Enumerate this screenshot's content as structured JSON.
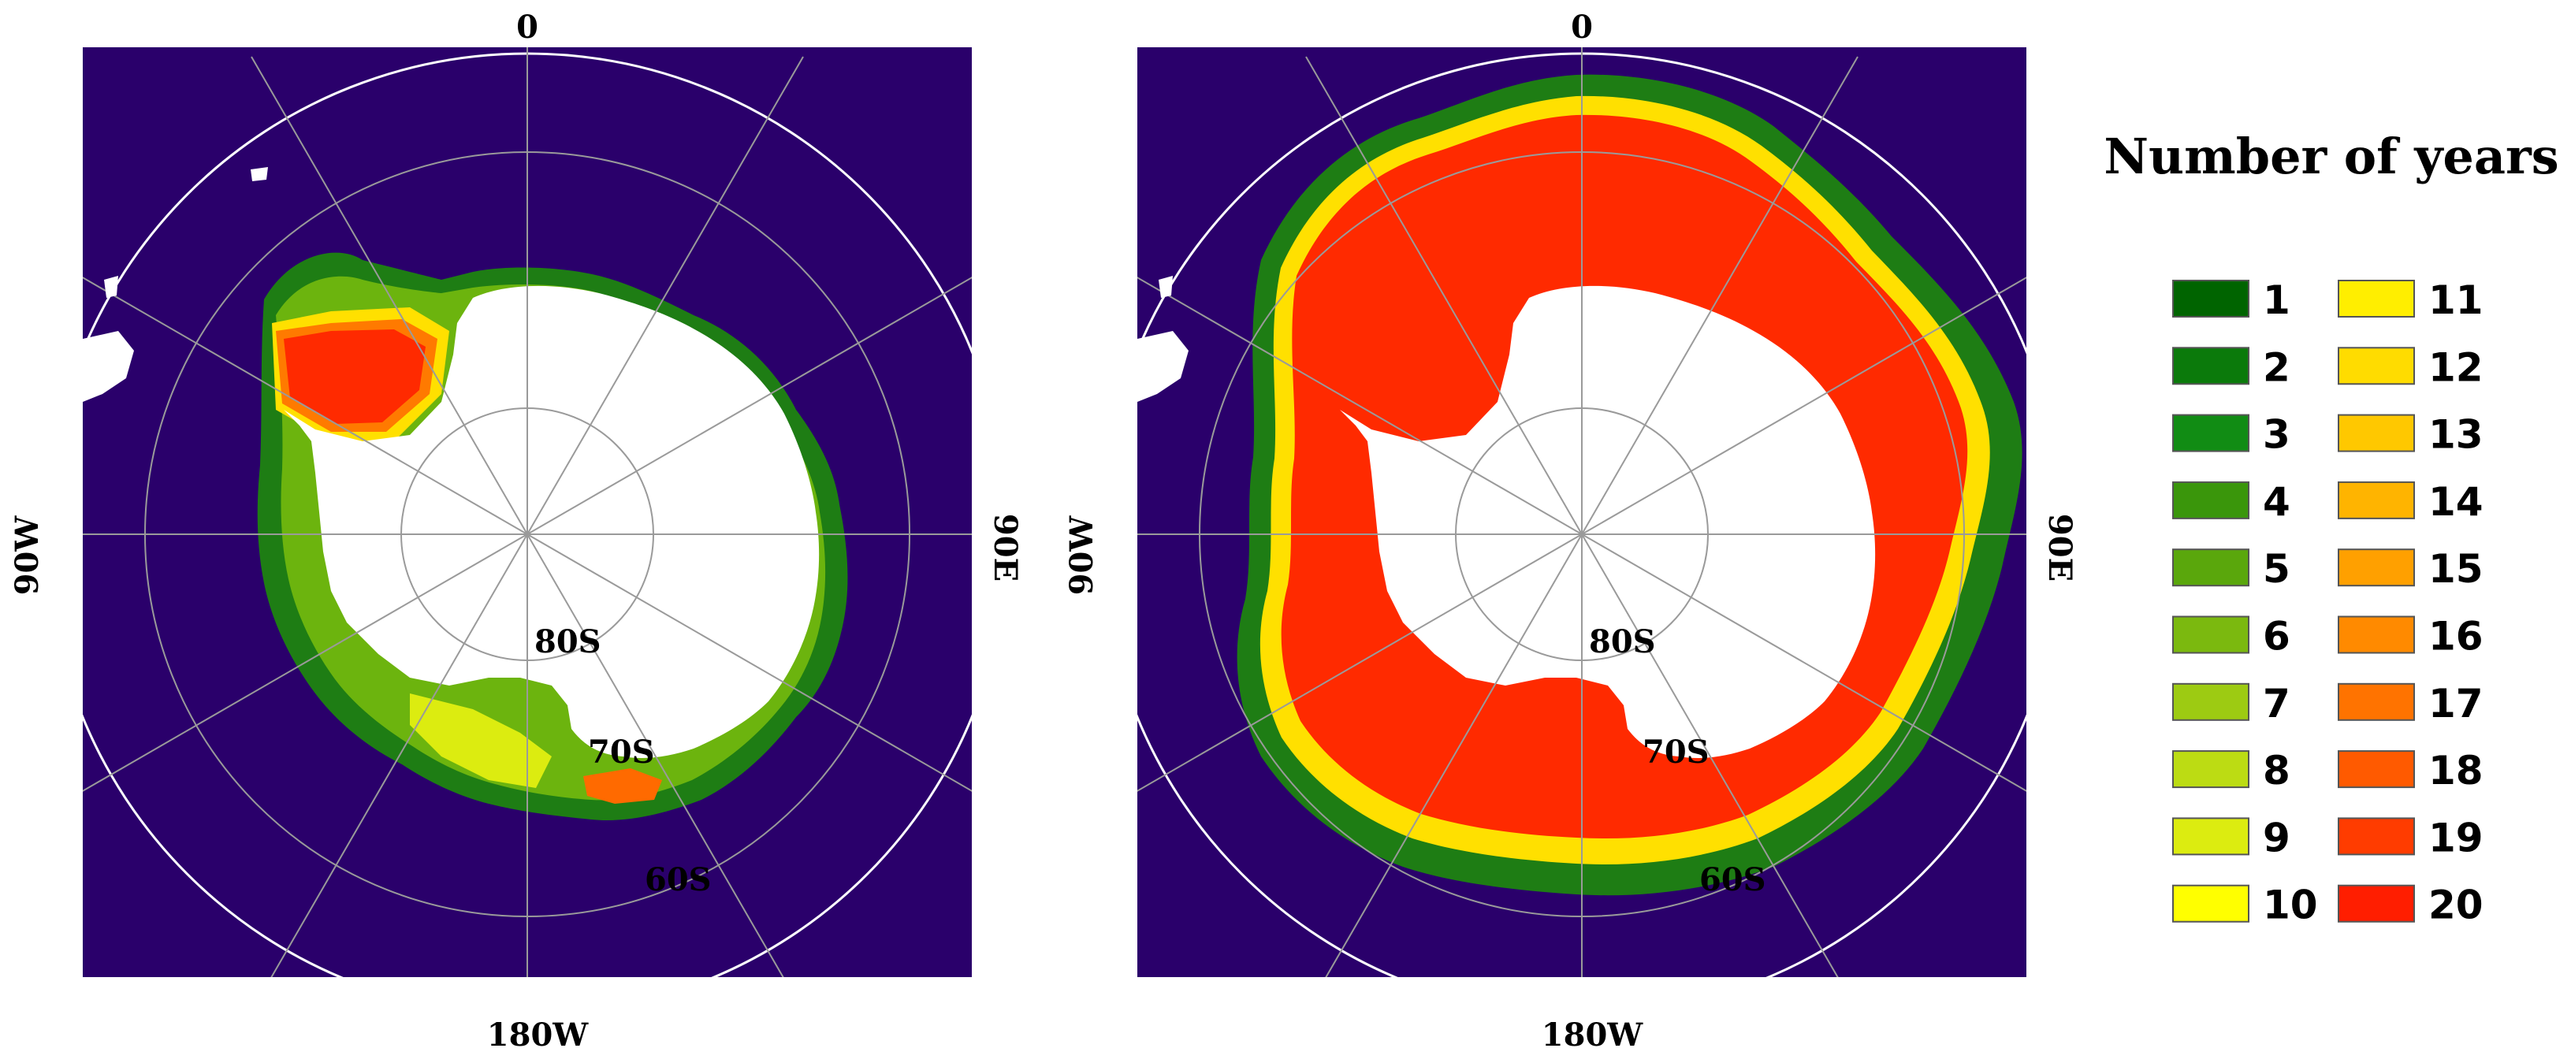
{
  "figure": {
    "panels": [
      {
        "id": "left",
        "labels": {
          "top": "0",
          "bottom": "180W",
          "left": "90W",
          "right": "90E",
          "lat80": "80S",
          "lat70": "70S",
          "lat60": "60S"
        },
        "colors": {
          "ocean": "#2a006b",
          "continent": "#ffffff",
          "graticule": "#9a9a9a",
          "boundary": "#ffffff"
        }
      },
      {
        "id": "right",
        "labels": {
          "top": "0",
          "bottom": "180W",
          "left": "90W",
          "right": "90E",
          "lat80": "80S",
          "lat70": "70S",
          "lat60": "60S"
        },
        "colors": {
          "ocean": "#2a006b",
          "continent": "#ffffff",
          "graticule": "#9a9a9a",
          "boundary": "#ffffff"
        }
      }
    ]
  },
  "legend": {
    "title": "Number of years",
    "items": [
      {
        "label": "1",
        "color": "#006400"
      },
      {
        "label": "2",
        "color": "#0b7a0b"
      },
      {
        "label": "3",
        "color": "#118c14"
      },
      {
        "label": "4",
        "color": "#3a960b"
      },
      {
        "label": "5",
        "color": "#5aa70c"
      },
      {
        "label": "6",
        "color": "#7bb90f"
      },
      {
        "label": "7",
        "color": "#9dcb12"
      },
      {
        "label": "8",
        "color": "#bcdc13"
      },
      {
        "label": "9",
        "color": "#dcec10"
      },
      {
        "label": "10",
        "color": "#ffff00"
      },
      {
        "label": "11",
        "color": "#ffee00"
      },
      {
        "label": "12",
        "color": "#ffdc00"
      },
      {
        "label": "13",
        "color": "#ffc800"
      },
      {
        "label": "14",
        "color": "#ffb400"
      },
      {
        "label": "15",
        "color": "#ffa000"
      },
      {
        "label": "16",
        "color": "#ff8a00"
      },
      {
        "label": "17",
        "color": "#ff7300"
      },
      {
        "label": "18",
        "color": "#ff5a00"
      },
      {
        "label": "19",
        "color": "#ff3c00"
      },
      {
        "label": "20",
        "color": "#ff1e00"
      }
    ]
  }
}
